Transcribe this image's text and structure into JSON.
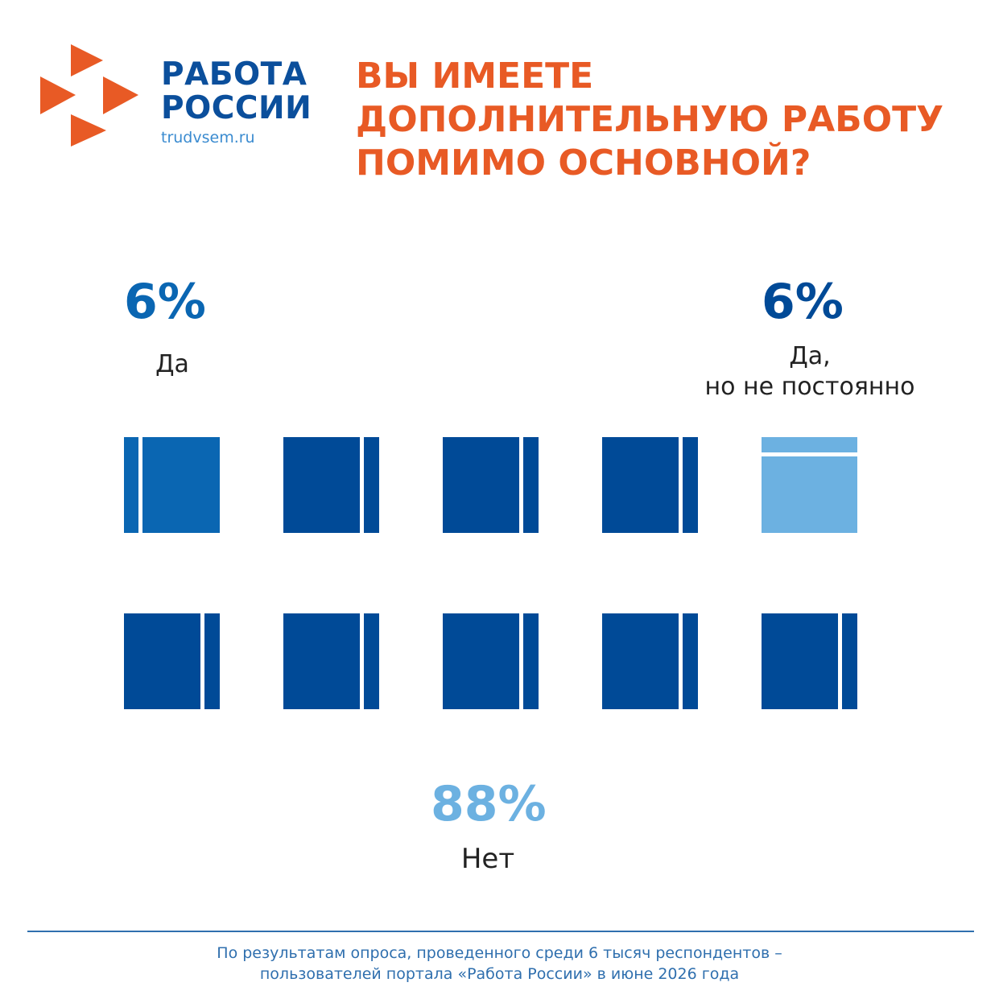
{
  "brand": {
    "line1": "РАБОТА",
    "line2": "РОССИИ",
    "url": "trudvsem.ru",
    "logo_icon": "arrows-cross-logo-icon"
  },
  "title": {
    "line1": "ВЫ ИМЕЕТЕ",
    "line2": "ДОПОЛНИТЕЛЬНУЮ РАБОТУ",
    "line3": "ПОМИМО ОСНОВНОЙ?"
  },
  "colors": {
    "accent": "#e85a25",
    "brand_blue": "#0b4f9c",
    "yes": "#0a66b2",
    "yes_sometimes": "#004a97",
    "no": "#6cb1e1"
  },
  "chart_data": {
    "type": "waffle",
    "grid": {
      "rows": 2,
      "cols": 5
    },
    "series": [
      {
        "name": "Да",
        "value": 6,
        "label": "6%",
        "cells": [
          0
        ]
      },
      {
        "name": "Да, но не постоянно",
        "value": 6,
        "label": "6%",
        "cells": [
          4
        ]
      },
      {
        "name": "Нет",
        "value": 88,
        "label": "88%",
        "cells": [
          1,
          2,
          3,
          5,
          6,
          7,
          8,
          9
        ]
      }
    ]
  },
  "labels": {
    "yes_pct": "6%",
    "yes": "Да",
    "yes_sometimes_pct": "6%",
    "yes_sometimes_line1": "Да,",
    "yes_sometimes_line2": "но не постоянно",
    "no_pct": "88%",
    "no": "Нет"
  },
  "footnote": {
    "line1": "По результатам опроса, проведенного среди 6 тысяч респондентов –",
    "line2": "пользователей портала «Работа России» в июне 2026 года"
  }
}
